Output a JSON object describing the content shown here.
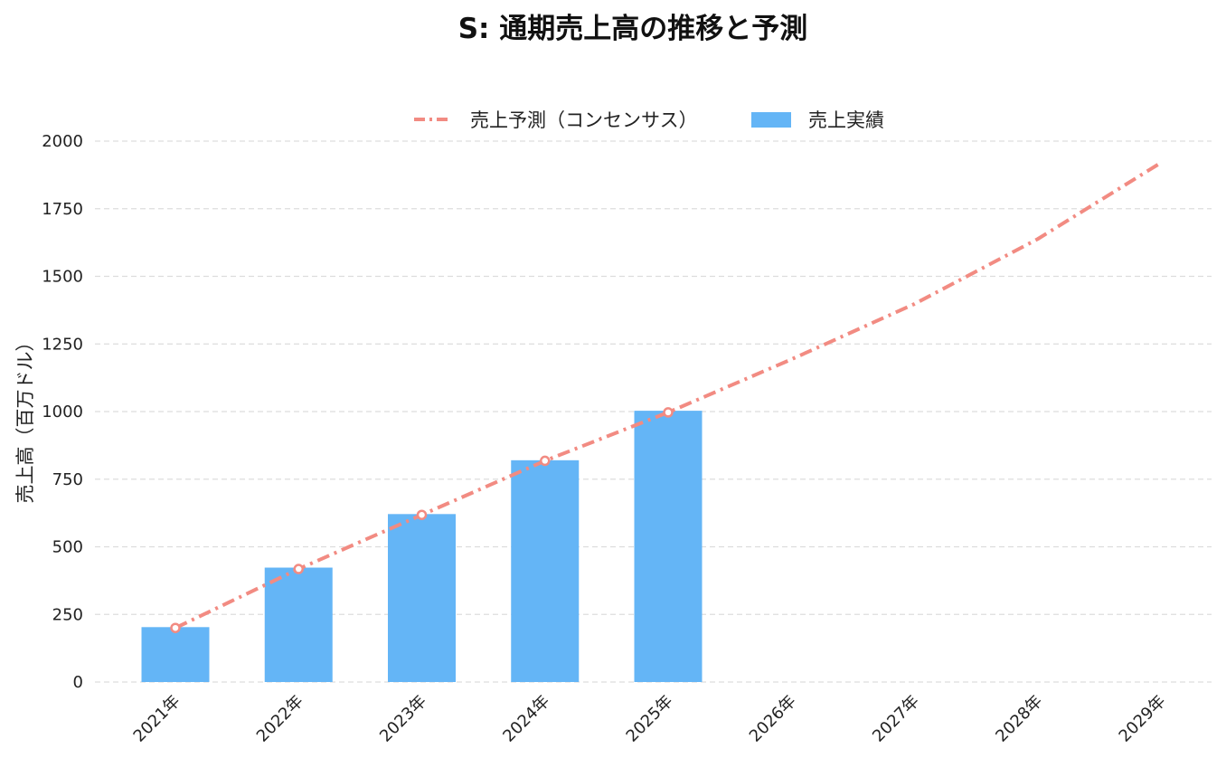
{
  "chart_data": {
    "type": "bar",
    "title": "S: 通期売上高の推移と予測",
    "xlabel": "",
    "ylabel": "売上高（百万ドル）",
    "categories": [
      "2021年",
      "2022年",
      "2023年",
      "2024年",
      "2025年",
      "2026年",
      "2027年",
      "2028年",
      "2029年"
    ],
    "ylim": [
      0,
      2000
    ],
    "yticks": [
      0,
      250,
      500,
      750,
      1000,
      1250,
      1500,
      1750,
      2000
    ],
    "ytick_labels": [
      "0",
      "250",
      "500",
      "750",
      "1000",
      "1250",
      "1500",
      "1750",
      "2000"
    ],
    "grid": true,
    "legend_position": "top-center",
    "series": [
      {
        "name": "売上実績",
        "kind": "bar",
        "color": "#64b5f6",
        "values": [
          203,
          423,
          621,
          820,
          1003,
          null,
          null,
          null,
          null
        ]
      },
      {
        "name": "売上予測（コンセンサス）",
        "kind": "line",
        "style": "dash-dot",
        "color": "#f28b82",
        "values": [
          200,
          418,
          618,
          818,
          997,
          1193,
          1398,
          1638,
          1920
        ]
      }
    ]
  }
}
